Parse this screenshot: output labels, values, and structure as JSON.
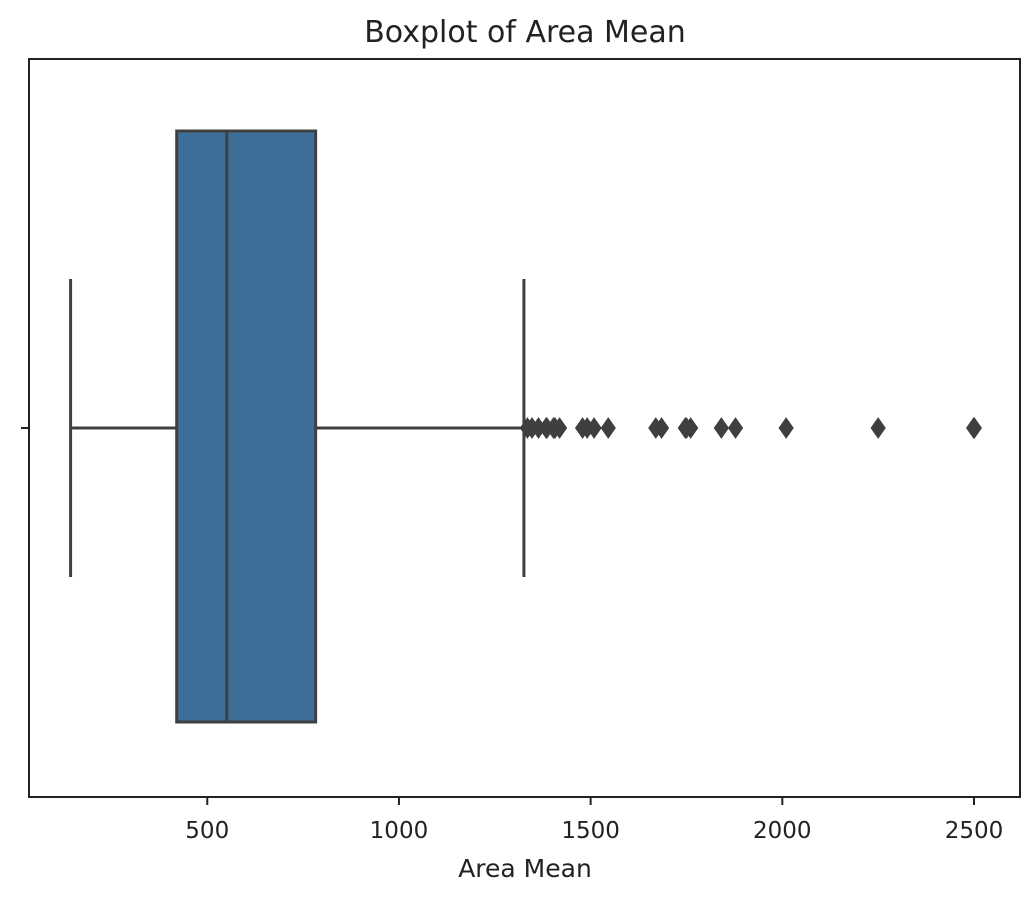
{
  "chart_data": {
    "type": "boxplot",
    "title": "Boxplot of Area Mean",
    "xlabel": "Area Mean",
    "ylabel": "",
    "xlim": [
      35,
      2620
    ],
    "x_ticks": [
      500,
      1000,
      1500,
      2000,
      2500
    ],
    "x_tick_labels": [
      "500",
      "1000",
      "1500",
      "2000",
      "2500"
    ],
    "grid": false,
    "box": {
      "whisker_low": 143.5,
      "q1": 420.3,
      "median": 551.1,
      "q3": 782.7,
      "whisker_high": 1326,
      "outliers": [
        1335,
        1347,
        1364,
        1384,
        1386,
        1403,
        1404,
        1407,
        1419,
        1479,
        1491,
        1509,
        1546,
        1670,
        1685,
        1747,
        1750,
        1761,
        1841,
        1878,
        2010,
        2250,
        2499,
        2501
      ]
    },
    "colors": {
      "box_fill": "#3e6f99",
      "line": "#3f3f3f",
      "axes": "#222222"
    }
  }
}
